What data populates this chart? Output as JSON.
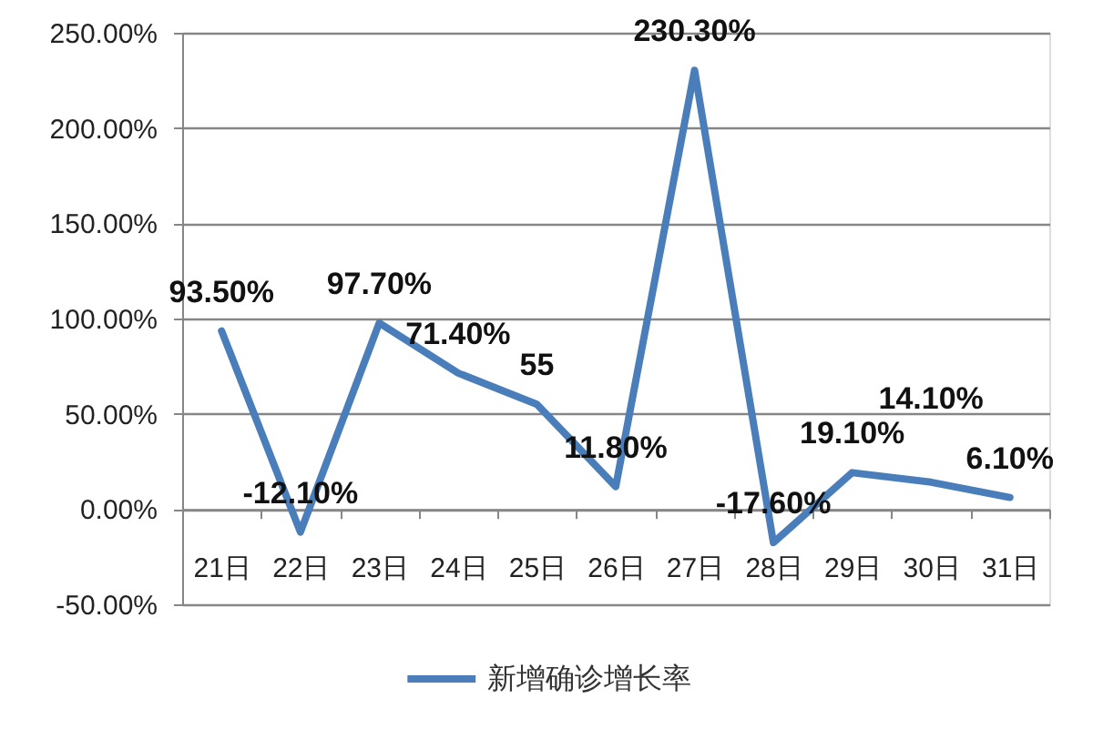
{
  "chart_data": {
    "type": "line",
    "categories": [
      "21日",
      "22日",
      "23日",
      "24日",
      "25日",
      "26日",
      "27日",
      "28日",
      "29日",
      "30日",
      "31日"
    ],
    "series": [
      {
        "name": "新增确诊增长率",
        "color": "#4a7ebb",
        "values": [
          93.5,
          -12.1,
          97.7,
          71.4,
          55,
          11.8,
          230.3,
          -17.6,
          19.1,
          14.1,
          6.1
        ],
        "value_labels": [
          "93.50%",
          "-12.10%",
          "97.70%",
          "71.40%",
          "55",
          "11.80%",
          "230.30%",
          "-17.60%",
          "19.10%",
          "14.10%",
          "6.10%"
        ]
      }
    ],
    "ylim": [
      -50,
      250
    ],
    "yticks": [
      {
        "value": -50,
        "label": "-50.00%"
      },
      {
        "value": 0,
        "label": "0.00%"
      },
      {
        "value": 50,
        "label": "50.00%"
      },
      {
        "value": 100,
        "label": "100.00%"
      },
      {
        "value": 150,
        "label": "150.00%"
      },
      {
        "value": 200,
        "label": "200.00%"
      },
      {
        "value": 250,
        "label": "250.00%"
      }
    ],
    "grid": "y",
    "legend": "bottom",
    "line_style": "solid"
  }
}
